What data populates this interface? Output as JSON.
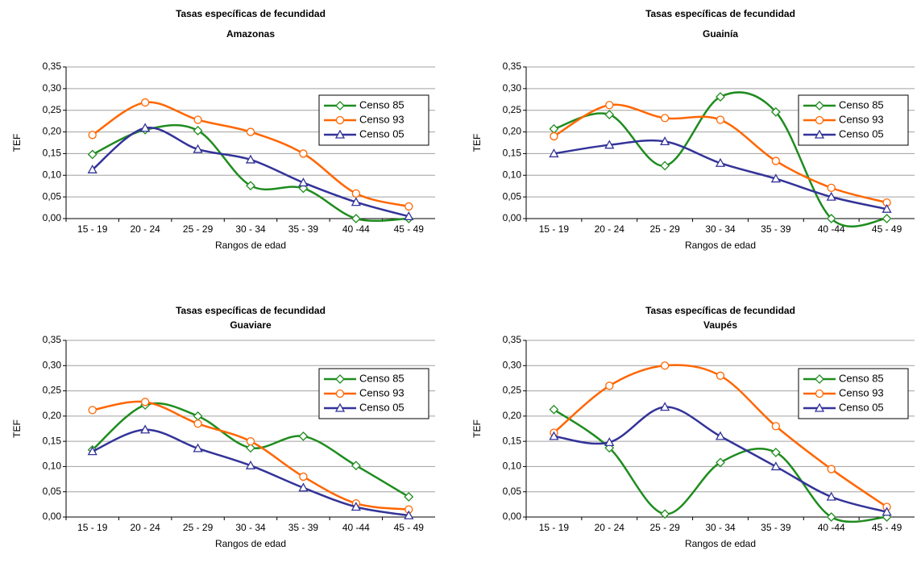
{
  "chart_data": [
    {
      "type": "line",
      "title": "Tasas específicas de fecundidad",
      "subtitle": "Amazonas",
      "xlabel": "Rangos de edad",
      "ylabel": "TEF",
      "categories": [
        "15 - 19",
        "20 - 24",
        "25 - 29",
        "30 - 34",
        "35 - 39",
        "40 -44",
        "45 - 49"
      ],
      "ylim": [
        0,
        0.35
      ],
      "yticks": [
        {
          "value": 0,
          "label": "0,00"
        },
        {
          "value": 0.05,
          "label": "0,05"
        },
        {
          "value": 0.1,
          "label": "0,10"
        },
        {
          "value": 0.15,
          "label": "0,15"
        },
        {
          "value": 0.2,
          "label": "0,20"
        },
        {
          "value": 0.25,
          "label": "0,25"
        },
        {
          "value": 0.3,
          "label": "0,30"
        },
        {
          "value": 0.35,
          "label": "0,35"
        }
      ],
      "grid": true,
      "legend": "right",
      "series": [
        {
          "name": "Censo 85",
          "color": "#1f8c1f",
          "marker": "diamond",
          "values": [
            0.148,
            0.205,
            0.203,
            0.076,
            0.07,
            0.0,
            0.0
          ]
        },
        {
          "name": "Censo 93",
          "color": "#ff6600",
          "marker": "circle",
          "values": [
            0.193,
            0.268,
            0.228,
            0.2,
            0.15,
            0.058,
            0.028
          ]
        },
        {
          "name": "Censo 05",
          "color": "#333399",
          "marker": "triangle",
          "values": [
            0.113,
            0.209,
            0.16,
            0.136,
            0.083,
            0.038,
            0.005
          ]
        }
      ]
    },
    {
      "type": "line",
      "title": "Tasas específicas de fecundidad",
      "subtitle": "Guainía",
      "xlabel": "Rangos de edad",
      "ylabel": "TEF",
      "categories": [
        "15 - 19",
        "20 - 24",
        "25 - 29",
        "30 - 34",
        "35 - 39",
        "40 -44",
        "45 - 49"
      ],
      "ylim": [
        0,
        0.35
      ],
      "yticks": [
        {
          "value": 0,
          "label": "0,00"
        },
        {
          "value": 0.05,
          "label": "0,05"
        },
        {
          "value": 0.1,
          "label": "0,10"
        },
        {
          "value": 0.15,
          "label": "0,15"
        },
        {
          "value": 0.2,
          "label": "0,20"
        },
        {
          "value": 0.25,
          "label": "0,25"
        },
        {
          "value": 0.3,
          "label": "0,30"
        },
        {
          "value": 0.35,
          "label": "0,35"
        }
      ],
      "grid": true,
      "legend": "right",
      "series": [
        {
          "name": "Censo 85",
          "color": "#1f8c1f",
          "marker": "diamond",
          "values": [
            0.207,
            0.24,
            0.122,
            0.281,
            0.246,
            0.0,
            0.0
          ]
        },
        {
          "name": "Censo 93",
          "color": "#ff6600",
          "marker": "circle",
          "values": [
            0.19,
            0.262,
            0.232,
            0.228,
            0.133,
            0.071,
            0.037
          ]
        },
        {
          "name": "Censo 05",
          "color": "#333399",
          "marker": "triangle",
          "values": [
            0.15,
            0.17,
            0.178,
            0.128,
            0.092,
            0.05,
            0.022
          ]
        }
      ]
    },
    {
      "type": "line",
      "title": "Tasas específicas de fecundidad",
      "subtitle": "Guaviare",
      "xlabel": "Rangos de edad",
      "ylabel": "TEF",
      "categories": [
        "15 - 19",
        "20 - 24",
        "25 - 29",
        "30 - 34",
        "35 - 39",
        "40 -44",
        "45 - 49"
      ],
      "ylim": [
        0,
        0.35
      ],
      "yticks": [
        {
          "value": 0,
          "label": "0,00"
        },
        {
          "value": 0.05,
          "label": "0,05"
        },
        {
          "value": 0.1,
          "label": "0,10"
        },
        {
          "value": 0.15,
          "label": "0,15"
        },
        {
          "value": 0.2,
          "label": "0,20"
        },
        {
          "value": 0.25,
          "label": "0,25"
        },
        {
          "value": 0.3,
          "label": "0,30"
        },
        {
          "value": 0.35,
          "label": "0,35"
        }
      ],
      "grid": true,
      "legend": "right",
      "series": [
        {
          "name": "Censo 85",
          "color": "#1f8c1f",
          "marker": "diamond",
          "values": [
            0.133,
            0.222,
            0.2,
            0.137,
            0.16,
            0.102,
            0.04
          ]
        },
        {
          "name": "Censo 93",
          "color": "#ff6600",
          "marker": "circle",
          "values": [
            0.212,
            0.228,
            0.185,
            0.15,
            0.08,
            0.027,
            0.015
          ]
        },
        {
          "name": "Censo 05",
          "color": "#333399",
          "marker": "triangle",
          "values": [
            0.13,
            0.173,
            0.136,
            0.102,
            0.058,
            0.02,
            0.003
          ]
        }
      ]
    },
    {
      "type": "line",
      "title": "Tasas específicas de fecundidad",
      "subtitle": "Vaupés",
      "xlabel": "Rangos de edad",
      "ylabel": "TEF",
      "categories": [
        "15 - 19",
        "20 - 24",
        "25 - 29",
        "30 - 34",
        "35 - 39",
        "40 -44",
        "45 - 49"
      ],
      "ylim": [
        0,
        0.35
      ],
      "yticks": [
        {
          "value": 0,
          "label": "0,00"
        },
        {
          "value": 0.05,
          "label": "0,05"
        },
        {
          "value": 0.1,
          "label": "0,10"
        },
        {
          "value": 0.15,
          "label": "0,15"
        },
        {
          "value": 0.2,
          "label": "0,20"
        },
        {
          "value": 0.25,
          "label": "0,25"
        },
        {
          "value": 0.3,
          "label": "0,30"
        },
        {
          "value": 0.35,
          "label": "0,35"
        }
      ],
      "grid": true,
      "legend": "right",
      "series": [
        {
          "name": "Censo 85",
          "color": "#1f8c1f",
          "marker": "diamond",
          "values": [
            0.213,
            0.137,
            0.006,
            0.108,
            0.128,
            0.0,
            0.0
          ]
        },
        {
          "name": "Censo 93",
          "color": "#ff6600",
          "marker": "circle",
          "values": [
            0.167,
            0.26,
            0.3,
            0.28,
            0.18,
            0.095,
            0.02
          ]
        },
        {
          "name": "Censo 05",
          "color": "#333399",
          "marker": "triangle",
          "values": [
            0.16,
            0.148,
            0.218,
            0.16,
            0.1,
            0.04,
            0.01
          ]
        }
      ]
    }
  ]
}
